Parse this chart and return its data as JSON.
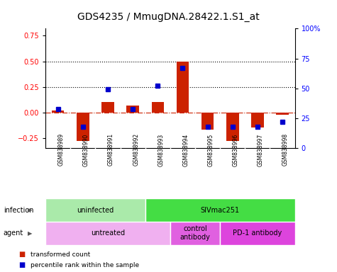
{
  "title": "GDS4235 / MmugDNA.28422.1.S1_at",
  "samples": [
    "GSM838989",
    "GSM838990",
    "GSM838991",
    "GSM838992",
    "GSM838993",
    "GSM838994",
    "GSM838995",
    "GSM838996",
    "GSM838997",
    "GSM838998"
  ],
  "transformed_count": [
    0.02,
    -0.28,
    0.1,
    0.07,
    0.1,
    0.5,
    -0.17,
    -0.28,
    -0.15,
    -0.02
  ],
  "percentile_rank": [
    0.33,
    0.18,
    0.49,
    0.33,
    0.52,
    0.67,
    0.18,
    0.18,
    0.18,
    0.22
  ],
  "bar_color": "#cc2200",
  "dot_color": "#0000cc",
  "ylim_left": [
    -0.35,
    0.82
  ],
  "ylim_right": [
    0,
    1.0
  ],
  "yticks_left": [
    -0.25,
    0.0,
    0.25,
    0.5,
    0.75
  ],
  "yticks_right": [
    0.0,
    0.25,
    0.5,
    0.75,
    1.0
  ],
  "ytick_labels_right": [
    "0",
    "25",
    "50",
    "75",
    "100%"
  ],
  "hline_dotted": [
    0.25,
    0.5
  ],
  "infection_groups": [
    {
      "label": "uninfected",
      "start": 0,
      "end": 4,
      "color": "#aaeaaa"
    },
    {
      "label": "SIVmac251",
      "start": 4,
      "end": 10,
      "color": "#44dd44"
    }
  ],
  "agent_groups": [
    {
      "label": "untreated",
      "start": 0,
      "end": 5,
      "color": "#f0b0f0"
    },
    {
      "label": "control\nantibody",
      "start": 5,
      "end": 7,
      "color": "#e060e0"
    },
    {
      "label": "PD-1 antibody",
      "start": 7,
      "end": 10,
      "color": "#dd44dd"
    }
  ],
  "row_label_infection": "infection",
  "row_label_agent": "agent",
  "legend_items": [
    {
      "label": "transformed count",
      "color": "#cc2200"
    },
    {
      "label": "percentile rank within the sample",
      "color": "#0000cc"
    }
  ],
  "bg_color": "#ffffff",
  "sample_bg_color": "#cccccc",
  "title_fontsize": 10,
  "tick_fontsize": 7,
  "sample_fontsize": 5.5,
  "label_fontsize": 7,
  "group_fontsize": 7
}
